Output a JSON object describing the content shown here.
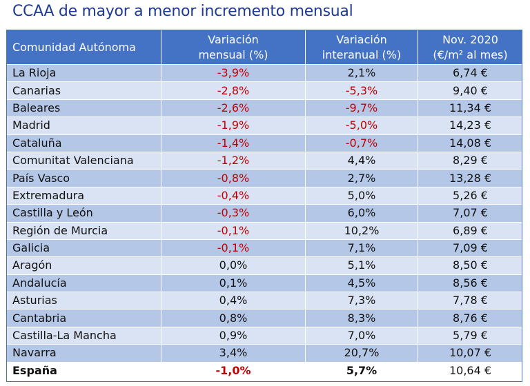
{
  "title": "CCAA de mayor a menor incremento mensual",
  "columns": [
    {
      "line1": "Comunidad Autónoma",
      "line2": ""
    },
    {
      "line1": "Variación",
      "line2": "mensual (%)"
    },
    {
      "line1": "Variación",
      "line2": "interanual (%)"
    },
    {
      "line1": "Nov. 2020",
      "line2": "(€/m² al mes)"
    }
  ],
  "rows": [
    {
      "region": "La Rioja",
      "mensual": "-3,9%",
      "interanual": "2,1%",
      "precio": "6,74 €"
    },
    {
      "region": "Canarias",
      "mensual": "-2,8%",
      "interanual": "-5,3%",
      "precio": "9,40 €"
    },
    {
      "region": "Baleares",
      "mensual": "-2,6%",
      "interanual": "-9,7%",
      "precio": "11,34 €"
    },
    {
      "region": "Madrid",
      "mensual": "-1,9%",
      "interanual": "-5,0%",
      "precio": "14,23 €"
    },
    {
      "region": "Cataluña",
      "mensual": "-1,4%",
      "interanual": "-0,7%",
      "precio": "14,08 €"
    },
    {
      "region": "Comunitat Valenciana",
      "mensual": "-1,2%",
      "interanual": "4,4%",
      "precio": "8,29 €"
    },
    {
      "region": "País Vasco",
      "mensual": "-0,8%",
      "interanual": "2,7%",
      "precio": "13,28 €"
    },
    {
      "region": "Extremadura",
      "mensual": "-0,4%",
      "interanual": "5,0%",
      "precio": "5,26 €"
    },
    {
      "region": "Castilla y León",
      "mensual": "-0,3%",
      "interanual": "6,0%",
      "precio": "7,07 €"
    },
    {
      "region": "Región de Murcia",
      "mensual": "-0,1%",
      "interanual": "10,2%",
      "precio": "6,89 €"
    },
    {
      "region": "Galicia",
      "mensual": "-0,1%",
      "interanual": "7,1%",
      "precio": "7,09 €"
    },
    {
      "region": "Aragón",
      "mensual": "0,0%",
      "interanual": "5,1%",
      "precio": "8,50 €"
    },
    {
      "region": "Andalucía",
      "mensual": "0,1%",
      "interanual": "4,5%",
      "precio": "8,56 €"
    },
    {
      "region": "Asturias",
      "mensual": "0,4%",
      "interanual": "7,3%",
      "precio": "7,78 €"
    },
    {
      "region": "Cantabria",
      "mensual": "0,8%",
      "interanual": "8,3%",
      "precio": "8,76 €"
    },
    {
      "region": "Castilla-La Mancha",
      "mensual": "0,9%",
      "interanual": "7,0%",
      "precio": "5,79 €"
    },
    {
      "region": "Navarra",
      "mensual": "3,4%",
      "interanual": "20,7%",
      "precio": "10,07 €"
    }
  ],
  "total": {
    "region": "España",
    "mensual": "-1,0%",
    "interanual": "5,7%",
    "precio": "10,64 €"
  },
  "colors": {
    "header": "#4472c4",
    "row_dark": "#b4c7e7",
    "row_light": "#dae3f3",
    "negative": "#c00000",
    "title": "#1f3a93"
  }
}
